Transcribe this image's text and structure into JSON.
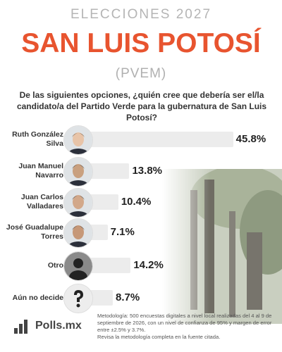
{
  "chart_data": {
    "type": "bar",
    "kicker": "ELECCIONES 2027",
    "title": "SAN LUIS POTOSÍ",
    "subtitle": "(PVEM)",
    "question": "De las siguientes opciones, ¿quién cree que debería ser el/la candidato/a del Partido Verde para la gubernatura de San Luis Potosí?",
    "categories": [
      "Ruth González Silva",
      "Juan Manuel Navarro",
      "Juan Carlos Valladares",
      "José Guadalupe Torres",
      "Otro",
      "Aún no decide"
    ],
    "values": [
      45.8,
      13.8,
      10.4,
      7.1,
      14.2,
      8.7
    ],
    "value_labels": [
      "45.8%",
      "13.8%",
      "10.4%",
      "7.1%",
      "14.2%",
      "8.7%"
    ],
    "color": "#ececec"
  },
  "footer": {
    "logo": "Polls.mx",
    "methodology": "Metodología: 500 encuestas digitales a nivel local realizadas del 4 al 9 de septiembre de 2026, con un nivel de confianza de 95% y margen de error entre ±2.5% y 3.7%.",
    "source_note": "Revisa la metodología completa en la fuente citada."
  }
}
